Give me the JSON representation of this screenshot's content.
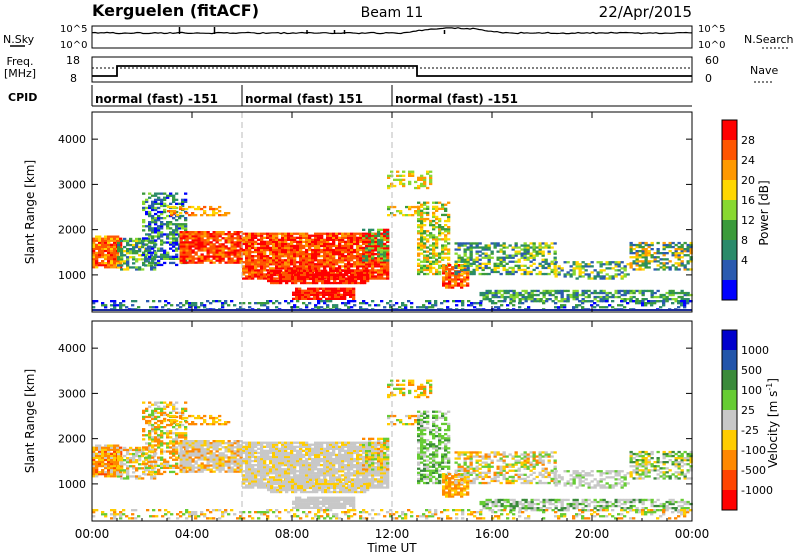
{
  "header": {
    "station": "Kerguelen (fitACF)",
    "beam": "Beam 11",
    "date": "22/Apr/2015"
  },
  "nsky_panel": {
    "left_label": "N.Sky",
    "right_label": "N.Search",
    "ticks_left": [
      "10^5",
      "10^0"
    ],
    "ticks_right": [
      "10^5",
      "10^0"
    ]
  },
  "freq_panel": {
    "left_label_line1": "Freq.",
    "left_label_line2": "[MHz]",
    "right_label": "Nave",
    "ticks_left": [
      "18",
      "8"
    ],
    "ticks_right": [
      "60",
      "0"
    ]
  },
  "cpid_panel": {
    "label": "CPID",
    "segments": [
      {
        "label": "normal (fast) -151",
        "start": 0,
        "end": 6
      },
      {
        "label": "normal (fast) 151",
        "start": 6,
        "end": 12
      },
      {
        "label": "normal (fast) -151",
        "start": 12,
        "end": 24
      }
    ]
  },
  "chart_data": [
    {
      "type": "heatmap",
      "name": "power",
      "ylabel": "Slant Range [km]",
      "yticks": [
        1000,
        2000,
        3000,
        4000
      ],
      "ylim": [
        180,
        4600
      ],
      "xlim": [
        0,
        24
      ],
      "colorbar": {
        "label": "Power [dB]",
        "ticks": [
          "28",
          "24",
          "20",
          "16",
          "12",
          "8",
          "4"
        ],
        "colors": [
          "#ff0000",
          "#ff5500",
          "#ff9900",
          "#ffd700",
          "#88d830",
          "#3a9a3a",
          "#2a8a6a",
          "#2a5ab0",
          "#0000ff"
        ]
      }
    },
    {
      "type": "heatmap",
      "name": "velocity",
      "ylabel": "Slant Range [km]",
      "yticks": [
        1000,
        2000,
        3000,
        4000
      ],
      "ylim": [
        180,
        4600
      ],
      "xlim": [
        0,
        24
      ],
      "colorbar": {
        "label": "Velocity [m s",
        "label_sup": "-1",
        "label_end": "]",
        "ticks": [
          "1000",
          "500",
          "100",
          "25",
          "-25",
          "-100",
          "-500",
          "-1000"
        ],
        "colors": [
          "#0000cc",
          "#2255aa",
          "#3a8a3a",
          "#66cc33",
          "#c8c8c8",
          "#ffcc00",
          "#ff8800",
          "#ff4400",
          "#ff0000"
        ]
      }
    }
  ],
  "x_axis": {
    "ticks": [
      "00:00",
      "04:00",
      "08:00",
      "12:00",
      "16:00",
      "20:00",
      "00:00"
    ],
    "tick_hours": [
      0,
      4,
      8,
      12,
      16,
      20,
      24
    ],
    "label": "Time UT"
  }
}
